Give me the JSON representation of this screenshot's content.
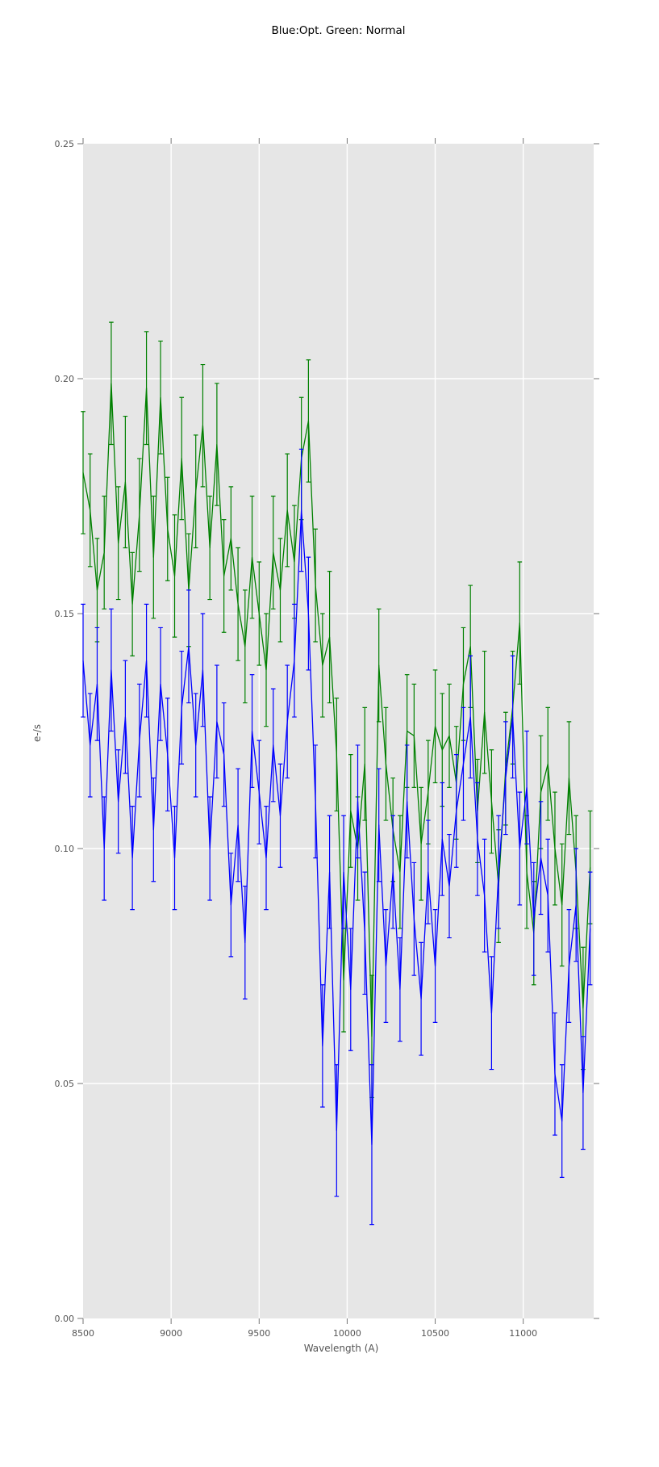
{
  "title": "Blue:Opt. Green: Normal",
  "colors": {
    "figure_background": "#ffffff",
    "plot_background": "#e6e6e6",
    "grid": "#ffffff",
    "tick": "#767676",
    "tick_label": "#555555",
    "axis_label": "#555555",
    "title_text": "#000000",
    "green_series": "#008000",
    "blue_series": "#0000ff"
  },
  "chart_data": {
    "type": "line",
    "title": "Blue:Opt. Green: Normal",
    "xlabel": "Wavelength (A)",
    "ylabel": "e-/s",
    "xlim": [
      8500,
      11400
    ],
    "ylim": [
      0.0,
      0.25
    ],
    "xticks": [
      8500,
      9000,
      9500,
      10000,
      10500,
      11000
    ],
    "xtick_labels": [
      "8500",
      "9000",
      "9500",
      "10000",
      "10500",
      "11000"
    ],
    "yticks": [
      0.0,
      0.05,
      0.1,
      0.15,
      0.2,
      0.25
    ],
    "ytick_labels": [
      "0.00",
      "0.05",
      "0.10",
      "0.15",
      "0.20",
      "0.25"
    ],
    "grid": true,
    "legend_position": "none",
    "error_bars": true,
    "x": [
      8500,
      8540,
      8580,
      8620,
      8660,
      8700,
      8740,
      8780,
      8820,
      8860,
      8900,
      8940,
      8980,
      9020,
      9060,
      9100,
      9140,
      9180,
      9220,
      9260,
      9300,
      9340,
      9380,
      9420,
      9460,
      9500,
      9540,
      9580,
      9620,
      9660,
      9700,
      9740,
      9780,
      9820,
      9860,
      9900,
      9940,
      9980,
      10020,
      10060,
      10100,
      10140,
      10180,
      10220,
      10260,
      10300,
      10340,
      10380,
      10420,
      10460,
      10500,
      10540,
      10580,
      10620,
      10660,
      10700,
      10740,
      10780,
      10820,
      10860,
      10900,
      10940,
      10980,
      11020,
      11060,
      11100,
      11140,
      11180,
      11220,
      11260,
      11300,
      11340,
      11380
    ],
    "series": [
      {
        "name": "Normal",
        "color_key": "green",
        "color": "#008000",
        "values": [
          0.18,
          0.172,
          0.155,
          0.163,
          0.199,
          0.165,
          0.178,
          0.152,
          0.171,
          0.198,
          0.162,
          0.196,
          0.168,
          0.158,
          0.183,
          0.155,
          0.176,
          0.19,
          0.164,
          0.186,
          0.158,
          0.166,
          0.152,
          0.143,
          0.162,
          0.15,
          0.138,
          0.163,
          0.155,
          0.172,
          0.161,
          0.183,
          0.191,
          0.156,
          0.139,
          0.145,
          0.12,
          0.072,
          0.108,
          0.1,
          0.118,
          0.06,
          0.139,
          0.118,
          0.104,
          0.095,
          0.125,
          0.124,
          0.101,
          0.112,
          0.126,
          0.121,
          0.124,
          0.114,
          0.135,
          0.143,
          0.108,
          0.129,
          0.11,
          0.092,
          0.117,
          0.13,
          0.148,
          0.095,
          0.082,
          0.112,
          0.118,
          0.1,
          0.088,
          0.115,
          0.095,
          0.066,
          0.096
        ],
        "errors": [
          0.013,
          0.012,
          0.011,
          0.012,
          0.013,
          0.012,
          0.014,
          0.011,
          0.012,
          0.012,
          0.013,
          0.012,
          0.011,
          0.013,
          0.013,
          0.012,
          0.012,
          0.013,
          0.011,
          0.013,
          0.012,
          0.011,
          0.012,
          0.012,
          0.013,
          0.011,
          0.012,
          0.012,
          0.011,
          0.012,
          0.012,
          0.013,
          0.013,
          0.012,
          0.011,
          0.014,
          0.012,
          0.011,
          0.012,
          0.011,
          0.012,
          0.013,
          0.012,
          0.012,
          0.011,
          0.012,
          0.012,
          0.011,
          0.012,
          0.011,
          0.012,
          0.012,
          0.011,
          0.012,
          0.012,
          0.013,
          0.011,
          0.013,
          0.011,
          0.012,
          0.012,
          0.012,
          0.013,
          0.012,
          0.011,
          0.012,
          0.012,
          0.012,
          0.013,
          0.012,
          0.012,
          0.013,
          0.012
        ]
      },
      {
        "name": "Opt",
        "color_key": "blue",
        "color": "#0000ff",
        "values": [
          0.14,
          0.122,
          0.135,
          0.1,
          0.138,
          0.11,
          0.128,
          0.098,
          0.123,
          0.14,
          0.104,
          0.135,
          0.12,
          0.098,
          0.13,
          0.143,
          0.122,
          0.138,
          0.1,
          0.127,
          0.12,
          0.088,
          0.105,
          0.08,
          0.125,
          0.112,
          0.098,
          0.122,
          0.107,
          0.127,
          0.14,
          0.172,
          0.15,
          0.11,
          0.058,
          0.095,
          0.04,
          0.095,
          0.07,
          0.11,
          0.082,
          0.037,
          0.105,
          0.075,
          0.095,
          0.07,
          0.11,
          0.085,
          0.068,
          0.095,
          0.075,
          0.102,
          0.092,
          0.108,
          0.118,
          0.128,
          0.102,
          0.09,
          0.065,
          0.095,
          0.115,
          0.128,
          0.1,
          0.113,
          0.085,
          0.098,
          0.09,
          0.052,
          0.042,
          0.075,
          0.088,
          0.048,
          0.083
        ],
        "errors": [
          0.012,
          0.011,
          0.012,
          0.011,
          0.013,
          0.011,
          0.012,
          0.011,
          0.012,
          0.012,
          0.011,
          0.012,
          0.012,
          0.011,
          0.012,
          0.012,
          0.011,
          0.012,
          0.011,
          0.012,
          0.011,
          0.011,
          0.012,
          0.012,
          0.012,
          0.011,
          0.011,
          0.012,
          0.011,
          0.012,
          0.012,
          0.013,
          0.012,
          0.012,
          0.013,
          0.012,
          0.014,
          0.012,
          0.013,
          0.012,
          0.013,
          0.017,
          0.012,
          0.012,
          0.012,
          0.011,
          0.012,
          0.012,
          0.012,
          0.011,
          0.012,
          0.012,
          0.011,
          0.012,
          0.012,
          0.013,
          0.012,
          0.012,
          0.012,
          0.012,
          0.012,
          0.013,
          0.012,
          0.012,
          0.012,
          0.012,
          0.012,
          0.013,
          0.012,
          0.012,
          0.012,
          0.012,
          0.012
        ]
      }
    ]
  }
}
